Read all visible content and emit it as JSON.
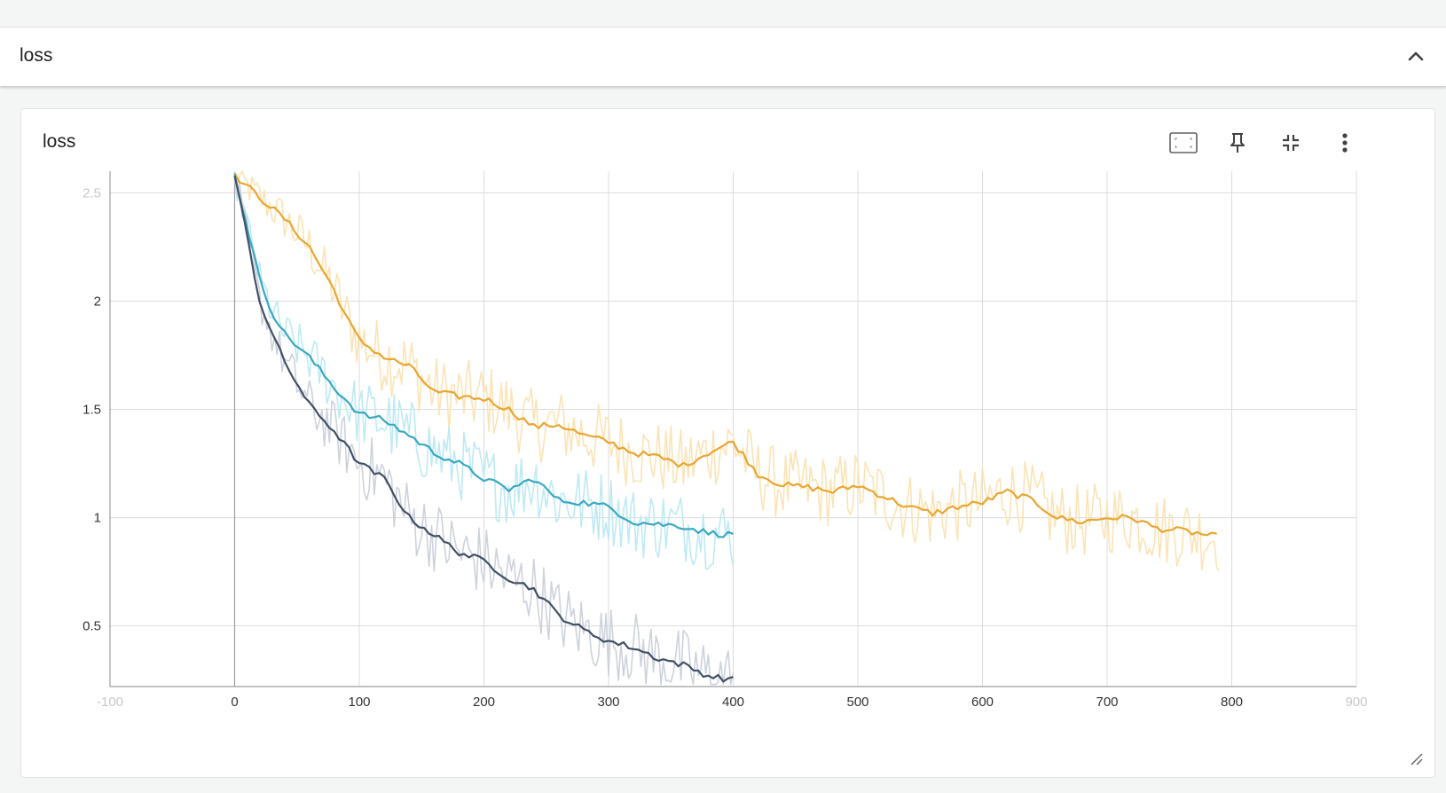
{
  "section": {
    "title": "loss",
    "collapse_icon": "chevron-up-icon"
  },
  "card": {
    "title": "loss",
    "toolbar": [
      {
        "name": "fit-domain-icon",
        "tooltip": "Fit domain to data"
      },
      {
        "name": "pin-icon",
        "tooltip": "Pin card"
      },
      {
        "name": "collapse-fullscreen-icon",
        "tooltip": "Exit full size"
      },
      {
        "name": "more-vert-icon",
        "tooltip": "More actions"
      }
    ]
  },
  "chart_data": {
    "type": "line",
    "title": "loss",
    "xlim": [
      -100,
      900
    ],
    "ylim": [
      0.22,
      2.6
    ],
    "grid": true,
    "x_ticks": [
      -100,
      0,
      100,
      200,
      300,
      400,
      500,
      600,
      700,
      800,
      900
    ],
    "x_tick_labels": [
      "-100",
      "0",
      "100",
      "200",
      "300",
      "400",
      "500",
      "600",
      "700",
      "800",
      "900"
    ],
    "x_tick_faded": [
      true,
      false,
      false,
      false,
      false,
      false,
      false,
      false,
      false,
      false,
      true
    ],
    "y_ticks": [
      0.5,
      1,
      1.5,
      2,
      2.5
    ],
    "y_tick_labels": [
      "0.5",
      "1",
      "1.5",
      "2",
      "2.5"
    ],
    "y_tick_faded": [
      false,
      false,
      false,
      false,
      true
    ],
    "series": [
      {
        "color": "#e9a630",
        "raw_color": "#fbe3b4",
        "x": [
          0,
          20,
          40,
          60,
          80,
          90,
          100,
          120,
          140,
          160,
          180,
          200,
          220,
          240,
          260,
          280,
          300,
          320,
          340,
          360,
          380,
          400,
          420,
          440,
          460,
          480,
          500,
          520,
          540,
          560,
          580,
          600,
          620,
          640,
          660,
          680,
          700,
          720,
          740,
          760,
          790
        ],
        "y": [
          2.58,
          2.48,
          2.38,
          2.25,
          2.05,
          1.92,
          1.82,
          1.74,
          1.7,
          1.58,
          1.56,
          1.55,
          1.5,
          1.42,
          1.43,
          1.38,
          1.35,
          1.3,
          1.28,
          1.24,
          1.3,
          1.35,
          1.2,
          1.15,
          1.14,
          1.12,
          1.15,
          1.1,
          1.05,
          1.02,
          1.05,
          1.07,
          1.12,
          1.08,
          1.0,
          0.98,
          1.0,
          1.0,
          0.95,
          0.94,
          0.91
        ]
      },
      {
        "color": "#3aa8c1",
        "raw_color": "#bdeaf4",
        "x": [
          0,
          10,
          20,
          30,
          40,
          60,
          80,
          100,
          120,
          140,
          160,
          180,
          200,
          220,
          240,
          260,
          280,
          300,
          320,
          340,
          360,
          380,
          400
        ],
        "y": [
          2.58,
          2.35,
          2.1,
          1.95,
          1.85,
          1.74,
          1.6,
          1.48,
          1.45,
          1.38,
          1.3,
          1.25,
          1.18,
          1.13,
          1.18,
          1.08,
          1.07,
          1.05,
          0.98,
          0.97,
          0.96,
          0.93,
          0.92
        ]
      },
      {
        "color": "#425066",
        "raw_color": "#cdd2dc",
        "x": [
          0,
          10,
          20,
          30,
          40,
          60,
          80,
          100,
          120,
          140,
          160,
          180,
          200,
          220,
          240,
          260,
          280,
          300,
          320,
          340,
          360,
          380,
          400
        ],
        "y": [
          2.58,
          2.3,
          2.0,
          1.85,
          1.72,
          1.52,
          1.4,
          1.25,
          1.18,
          1.0,
          0.92,
          0.84,
          0.8,
          0.72,
          0.67,
          0.55,
          0.48,
          0.43,
          0.4,
          0.35,
          0.32,
          0.27,
          0.25
        ]
      }
    ]
  }
}
